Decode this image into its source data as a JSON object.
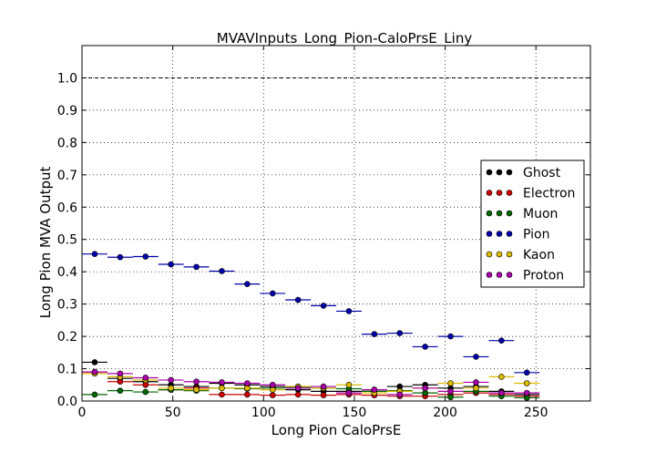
{
  "chart_data": {
    "type": "scatter",
    "title": "MVAVInputs_Long_Pion-CaloPrsE_Liny",
    "xlabel": "Long Pion CaloPrsE",
    "ylabel": "Long Pion MVA Output",
    "xlim": [
      0,
      280
    ],
    "ylim": [
      0,
      1.1
    ],
    "xticks": [
      "0",
      "50",
      "100",
      "150",
      "200",
      "250"
    ],
    "yticks": [
      "0.0",
      "0.1",
      "0.2",
      "0.3",
      "0.4",
      "0.5",
      "0.6",
      "0.7",
      "0.8",
      "0.9",
      "1.0"
    ],
    "grid": true,
    "reference_line": 1.0,
    "legend_position": "right",
    "bin_half_width": 7,
    "x": [
      7,
      21,
      35,
      49,
      63,
      77,
      91,
      105,
      119,
      133,
      147,
      161,
      175,
      189,
      203,
      217,
      231,
      245
    ],
    "series": [
      {
        "name": "Ghost",
        "color": "#000000",
        "values": [
          0.12,
          0.07,
          0.06,
          0.05,
          0.045,
          0.055,
          0.05,
          0.045,
          0.035,
          0.03,
          0.03,
          0.035,
          0.045,
          0.05,
          0.04,
          0.045,
          0.03,
          0.02
        ]
      },
      {
        "name": "Electron",
        "color": "#cc0000",
        "values": [
          0.09,
          0.06,
          0.05,
          0.035,
          0.04,
          0.02,
          0.02,
          0.018,
          0.02,
          0.018,
          0.02,
          0.018,
          0.015,
          0.015,
          0.02,
          0.025,
          0.02,
          0.015
        ]
      },
      {
        "name": "Muon",
        "color": "#006600",
        "values": [
          0.02,
          0.032,
          0.028,
          0.035,
          0.032,
          0.04,
          0.038,
          0.04,
          0.042,
          0.04,
          0.038,
          0.03,
          0.032,
          0.025,
          0.012,
          0.03,
          0.015,
          0.01
        ]
      },
      {
        "name": "Pion",
        "color": "#0000aa",
        "values": [
          0.455,
          0.445,
          0.447,
          0.423,
          0.415,
          0.402,
          0.362,
          0.333,
          0.313,
          0.295,
          0.278,
          0.207,
          0.21,
          0.168,
          0.2,
          0.137,
          0.187,
          0.088
        ]
      },
      {
        "name": "Kaon",
        "color": "#ddbb00",
        "values": [
          0.085,
          0.075,
          0.065,
          0.04,
          0.035,
          0.04,
          0.04,
          0.035,
          0.045,
          0.04,
          0.05,
          0.025,
          0.03,
          0.04,
          0.055,
          0.04,
          0.075,
          0.055
        ]
      },
      {
        "name": "Proton",
        "color": "#aa00aa",
        "values": [
          0.09,
          0.085,
          0.072,
          0.065,
          0.06,
          0.058,
          0.055,
          0.05,
          0.04,
          0.045,
          0.025,
          0.035,
          0.02,
          0.04,
          0.03,
          0.058,
          0.025,
          0.025
        ]
      }
    ]
  }
}
